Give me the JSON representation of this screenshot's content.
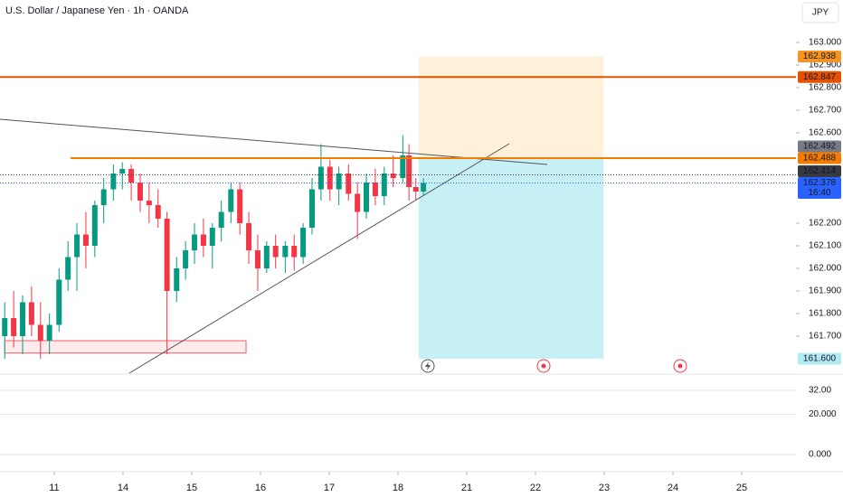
{
  "chart_data": {
    "type": "candlestick",
    "title": "U.S. Dollar / Japanese Yen · 1h · OANDA",
    "currency": "JPY",
    "up_color": "#089981",
    "down_color": "#f23645",
    "x": [
      -0.72,
      -0.59,
      -0.46,
      -0.33,
      -0.2,
      -0.07,
      0.07,
      0.2,
      0.33,
      0.46,
      0.59,
      0.72,
      0.86,
      0.99,
      1.12,
      1.25,
      1.38,
      1.51,
      1.64,
      1.78,
      1.91,
      2.04,
      2.17,
      2.3,
      2.43,
      2.57,
      2.7,
      2.83,
      2.96,
      3.09,
      3.22,
      3.36,
      3.49,
      3.62,
      3.75,
      3.88,
      4.01,
      4.14,
      4.28,
      4.41,
      4.54,
      4.67,
      4.8,
      4.93,
      5.07,
      5.16,
      5.26,
      5.37
    ],
    "open": [
      161.7,
      161.78,
      161.7,
      161.85,
      161.75,
      161.68,
      161.75,
      161.95,
      162.05,
      162.15,
      162.1,
      162.28,
      162.35,
      162.42,
      162.44,
      162.38,
      162.3,
      162.28,
      162.22,
      161.9,
      162.0,
      162.08,
      162.15,
      162.1,
      162.18,
      162.25,
      162.35,
      162.2,
      162.08,
      162.0,
      162.1,
      162.05,
      162.1,
      162.05,
      162.18,
      162.35,
      162.45,
      162.35,
      162.42,
      162.33,
      162.25,
      162.38,
      162.32,
      162.42,
      162.4,
      162.5,
      162.36,
      162.34
    ],
    "high": [
      161.85,
      161.9,
      161.88,
      161.92,
      161.85,
      161.8,
      162.0,
      162.12,
      162.2,
      162.25,
      162.3,
      162.4,
      162.46,
      162.47,
      162.46,
      162.42,
      162.38,
      162.35,
      162.25,
      162.05,
      162.12,
      162.2,
      162.22,
      162.2,
      162.3,
      162.38,
      162.38,
      162.25,
      162.15,
      162.12,
      162.15,
      162.12,
      162.15,
      162.2,
      162.4,
      162.55,
      162.48,
      162.45,
      162.46,
      162.38,
      162.42,
      162.44,
      162.45,
      162.5,
      162.59,
      162.55,
      162.4,
      162.4
    ],
    "low": [
      161.6,
      161.65,
      161.62,
      161.7,
      161.6,
      161.62,
      161.72,
      161.9,
      161.9,
      162.0,
      162.05,
      162.2,
      162.3,
      162.35,
      162.3,
      162.25,
      162.2,
      162.18,
      161.62,
      161.85,
      161.95,
      162.02,
      162.05,
      162.0,
      162.12,
      162.2,
      162.15,
      162.02,
      161.9,
      161.98,
      162.0,
      161.98,
      161.99,
      162.02,
      162.15,
      162.3,
      162.3,
      162.28,
      162.3,
      162.13,
      162.22,
      162.28,
      162.28,
      162.36,
      162.38,
      162.3,
      162.3,
      162.32
    ],
    "close": [
      161.78,
      161.7,
      161.85,
      161.75,
      161.68,
      161.75,
      161.95,
      162.05,
      162.15,
      162.1,
      162.28,
      162.35,
      162.42,
      162.44,
      162.38,
      162.3,
      162.28,
      162.22,
      161.9,
      162.0,
      162.08,
      162.15,
      162.1,
      162.18,
      162.25,
      162.35,
      162.2,
      162.08,
      162.0,
      162.1,
      162.05,
      162.1,
      162.05,
      162.18,
      162.35,
      162.45,
      162.35,
      162.42,
      162.33,
      162.25,
      162.38,
      162.32,
      162.42,
      162.4,
      162.5,
      162.36,
      162.34,
      162.378
    ],
    "xlim": [
      -0.789,
      10.789
    ],
    "xticks": [
      {
        "value": 0,
        "label": "11"
      },
      {
        "value": 1,
        "label": "14"
      },
      {
        "value": 2,
        "label": "15"
      },
      {
        "value": 3,
        "label": "16"
      },
      {
        "value": 4,
        "label": "17"
      },
      {
        "value": 5,
        "label": "18"
      },
      {
        "value": 6,
        "label": "21"
      },
      {
        "value": 7,
        "label": "22"
      },
      {
        "value": 8,
        "label": "23"
      },
      {
        "value": 9,
        "label": "24"
      },
      {
        "value": 10,
        "label": "25"
      }
    ],
    "ylim": [
      161.536,
      163.188
    ],
    "yticks": [
      {
        "value": 163,
        "label": "163.000"
      },
      {
        "value": 162.9,
        "label": "162.900"
      },
      {
        "value": 162.8,
        "label": "162.800"
      },
      {
        "value": 162.7,
        "label": "162.700"
      },
      {
        "value": 162.6,
        "label": "162.600"
      },
      {
        "value": 162.2,
        "label": "162.200"
      },
      {
        "value": 162.1,
        "label": "162.100"
      },
      {
        "value": 162,
        "label": "162.000"
      },
      {
        "value": 161.9,
        "label": "161.900"
      },
      {
        "value": 161.8,
        "label": "161.800"
      },
      {
        "value": 161.7,
        "label": "161.700"
      }
    ],
    "levels": [
      {
        "value": 162.847,
        "x": -0.789,
        "color": "#e65100"
      },
      {
        "value": 162.488,
        "x": 0.237,
        "color": "#f57c00"
      }
    ],
    "trend_lines": [
      {
        "x": [
          -0.789,
          7.17
        ],
        "y": [
          162.66,
          162.46
        ],
        "color": "#555555"
      },
      {
        "x": [
          1.09,
          6.62
        ],
        "y": [
          161.536,
          162.552
        ],
        "color": "#555555"
      }
    ],
    "zones": [
      {
        "x": [
          -0.72,
          2.79
        ],
        "y": [
          161.625,
          161.68
        ],
        "color": "#f23645"
      }
    ],
    "position": {
      "x": [
        5.3,
        7.99
      ],
      "entry": 162.488,
      "target": 162.938,
      "stop": 161.6
    },
    "price_labels": [
      {
        "value": 162.938,
        "label": "162.938",
        "color": "#f7931e"
      },
      {
        "value": 162.847,
        "label": "162.847",
        "color": "#e65100"
      },
      {
        "value": 162.492,
        "label": "162.492",
        "color": "#787b86"
      },
      {
        "value": 162.488,
        "label": "162.488",
        "color": "#f57c00"
      },
      {
        "value": 162.414,
        "label": "162.414",
        "color": "#363a45"
      },
      {
        "value": 162.378,
        "label": "162.378",
        "color": "#2962ff"
      },
      {
        "value": 161.6,
        "label": "161.600",
        "color": "#b2ebf2"
      }
    ],
    "countdown": "16:40",
    "indicator": {
      "ylim": [
        -7.6,
        39.6
      ],
      "yticks": [
        {
          "value": 32,
          "label": "32.00"
        },
        {
          "value": 20,
          "label": "20.000"
        },
        {
          "value": 0,
          "label": "0.000"
        }
      ]
    }
  }
}
